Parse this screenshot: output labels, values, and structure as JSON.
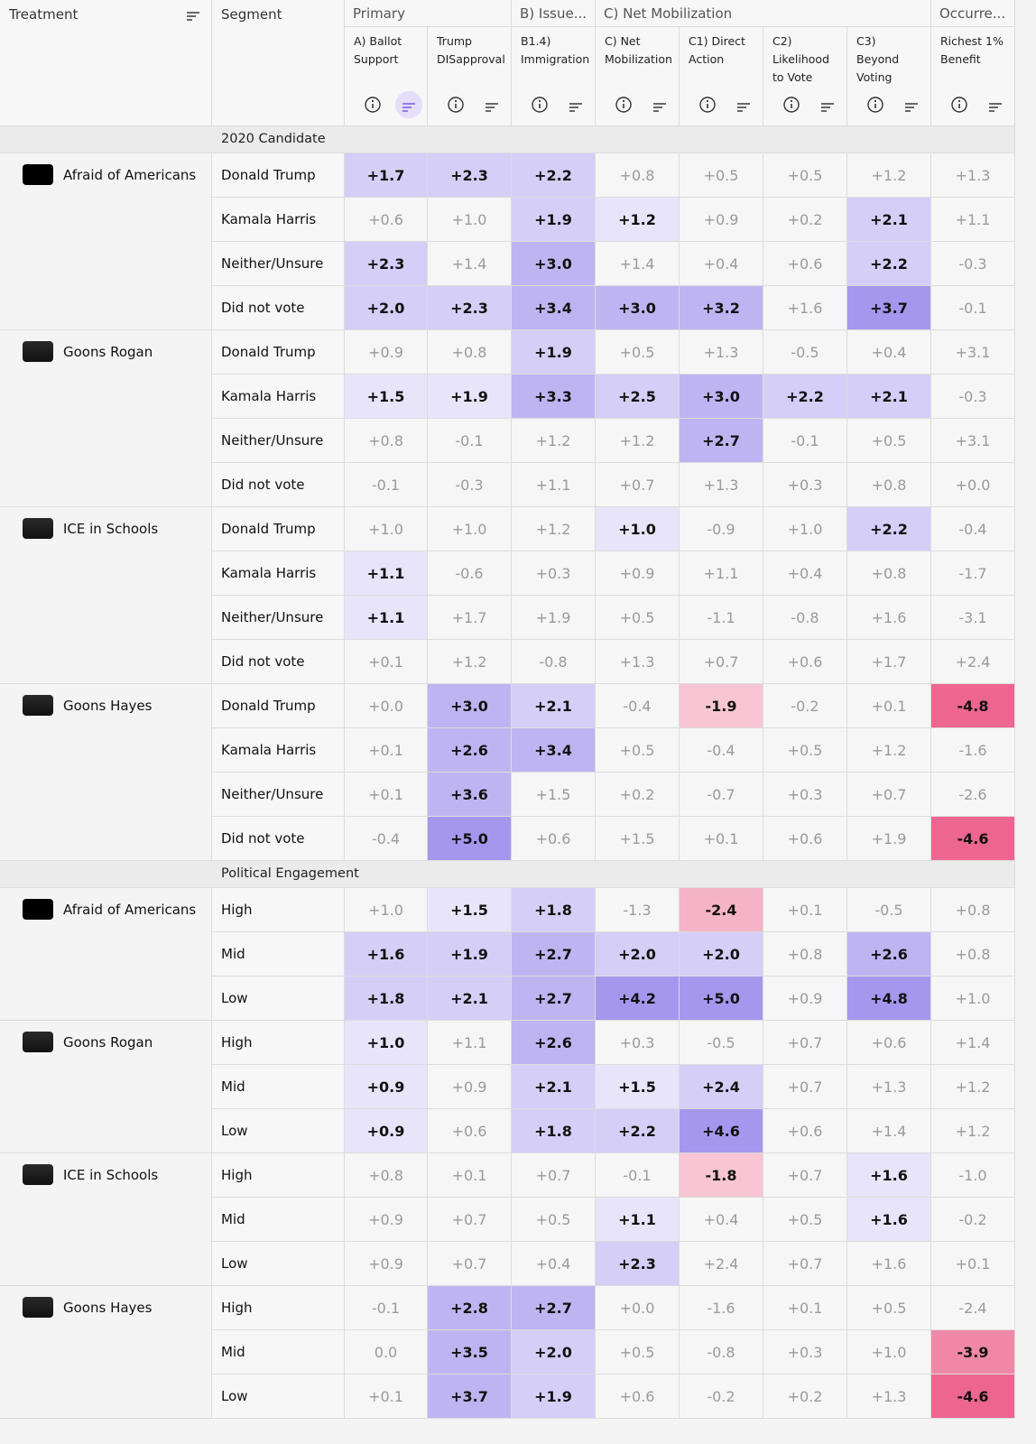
{
  "header": {
    "treatment": "Treatment",
    "segment": "Segment",
    "groups": [
      "Primary",
      "B) Issue...",
      "C) Net Mobilization",
      "Occurre..."
    ],
    "columns": [
      "A) Ballot Support",
      "Trump DISapproval",
      "B1.4) Immigration",
      "C) Net Mobilization",
      "C1) Direct Action",
      "C2) Likelihood to Vote",
      "C3) Beyond Voting",
      "Richest 1% Benefit"
    ]
  },
  "sections": [
    {
      "title": "2020 Candidate",
      "groups": [
        {
          "treatment": "Afraid of Americans",
          "rows": [
            {
              "segment": "Donald Trump",
              "cells": [
                "+1.7",
                "+2.3",
                "+2.2",
                "+0.8",
                "+0.5",
                "+0.5",
                "+1.2",
                "+1.3"
              ],
              "shades": [
                "#d5cef7",
                "#d5cef7",
                "#d5cef7",
                null,
                null,
                null,
                null,
                null
              ]
            },
            {
              "segment": "Kamala Harris",
              "cells": [
                "+0.6",
                "+1.0",
                "+1.9",
                "+1.2",
                "+0.9",
                "+0.2",
                "+2.1",
                "+1.1"
              ],
              "shades": [
                null,
                null,
                "#d5cef7",
                "#e8e5fa",
                null,
                null,
                "#d5cef7",
                null
              ]
            },
            {
              "segment": "Neither/Unsure",
              "cells": [
                "+2.3",
                "+1.4",
                "+3.0",
                "+1.4",
                "+0.4",
                "+0.6",
                "+2.2",
                "-0.3"
              ],
              "shades": [
                "#d5cef7",
                null,
                "#bfb4f2",
                null,
                null,
                null,
                "#d5cef7",
                null
              ]
            },
            {
              "segment": "Did not vote",
              "cells": [
                "+2.0",
                "+2.3",
                "+3.4",
                "+3.0",
                "+3.2",
                "+1.6",
                "+3.7",
                "-0.1"
              ],
              "shades": [
                "#d5cef7",
                "#d5cef7",
                "#bfb4f2",
                "#bfb4f2",
                "#bfb4f2",
                null,
                "#a597ee",
                null
              ]
            }
          ]
        },
        {
          "treatment": "Goons Rogan",
          "rows": [
            {
              "segment": "Donald Trump",
              "cells": [
                "+0.9",
                "+0.8",
                "+1.9",
                "+0.5",
                "+1.3",
                "-0.5",
                "+0.4",
                "+3.1"
              ],
              "shades": [
                null,
                null,
                "#d5cef7",
                null,
                null,
                null,
                null,
                null
              ]
            },
            {
              "segment": "Kamala Harris",
              "cells": [
                "+1.5",
                "+1.9",
                "+3.3",
                "+2.5",
                "+3.0",
                "+2.2",
                "+2.1",
                "-0.3"
              ],
              "shades": [
                "#e8e5fa",
                "#e8e5fa",
                "#bfb4f2",
                "#d5cef7",
                "#bfb4f2",
                "#d5cef7",
                "#d5cef7",
                null
              ]
            },
            {
              "segment": "Neither/Unsure",
              "cells": [
                "+0.8",
                "-0.1",
                "+1.2",
                "+1.2",
                "+2.7",
                "-0.1",
                "+0.5",
                "+3.1"
              ],
              "shades": [
                null,
                null,
                null,
                null,
                "#bfb4f2",
                null,
                null,
                null
              ]
            },
            {
              "segment": "Did not vote",
              "cells": [
                "-0.1",
                "-0.3",
                "+1.1",
                "+0.7",
                "+1.3",
                "+0.3",
                "+0.8",
                "+0.0"
              ],
              "shades": [
                null,
                null,
                null,
                null,
                null,
                null,
                null,
                null
              ]
            }
          ]
        },
        {
          "treatment": "ICE in Schools",
          "rows": [
            {
              "segment": "Donald Trump",
              "cells": [
                "+1.0",
                "+1.0",
                "+1.2",
                "+1.0",
                "-0.9",
                "+1.0",
                "+2.2",
                "-0.4"
              ],
              "shades": [
                null,
                null,
                null,
                "#e8e5fa",
                null,
                null,
                "#d5cef7",
                null
              ]
            },
            {
              "segment": "Kamala Harris",
              "cells": [
                "+1.1",
                "-0.6",
                "+0.3",
                "+0.9",
                "+1.1",
                "+0.4",
                "+0.8",
                "-1.7"
              ],
              "shades": [
                "#e8e5fa",
                null,
                null,
                null,
                null,
                null,
                null,
                null
              ]
            },
            {
              "segment": "Neither/Unsure",
              "cells": [
                "+1.1",
                "+1.7",
                "+1.9",
                "+0.5",
                "-1.1",
                "-0.8",
                "+1.6",
                "-3.1"
              ],
              "shades": [
                "#e8e5fa",
                null,
                null,
                null,
                null,
                null,
                null,
                null
              ]
            },
            {
              "segment": "Did not vote",
              "cells": [
                "+0.1",
                "+1.2",
                "-0.8",
                "+1.3",
                "+0.7",
                "+0.6",
                "+1.7",
                "+2.4"
              ],
              "shades": [
                null,
                null,
                null,
                null,
                null,
                null,
                null,
                null
              ]
            }
          ]
        },
        {
          "treatment": "Goons Hayes",
          "rows": [
            {
              "segment": "Donald Trump",
              "cells": [
                "+0.0",
                "+3.0",
                "+2.1",
                "-0.4",
                "-1.9",
                "-0.2",
                "+0.1",
                "-4.8"
              ],
              "shades": [
                null,
                "#bfb4f2",
                "#d5cef7",
                null,
                "#f7c5d3",
                null,
                null,
                "#ec6690"
              ]
            },
            {
              "segment": "Kamala Harris",
              "cells": [
                "+0.1",
                "+2.6",
                "+3.4",
                "+0.5",
                "-0.4",
                "+0.5",
                "+1.2",
                "-1.6"
              ],
              "shades": [
                null,
                "#bfb4f2",
                "#bfb4f2",
                null,
                null,
                null,
                null,
                null
              ]
            },
            {
              "segment": "Neither/Unsure",
              "cells": [
                "+0.1",
                "+3.6",
                "+1.5",
                "+0.2",
                "-0.7",
                "+0.3",
                "+0.7",
                "-2.6"
              ],
              "shades": [
                null,
                "#bfb4f2",
                null,
                null,
                null,
                null,
                null,
                null
              ]
            },
            {
              "segment": "Did not vote",
              "cells": [
                "-0.4",
                "+5.0",
                "+0.6",
                "+1.5",
                "+0.1",
                "+0.6",
                "+1.9",
                "-4.6"
              ],
              "shades": [
                null,
                "#a597ee",
                null,
                null,
                null,
                null,
                null,
                "#ec6690"
              ]
            }
          ]
        }
      ]
    },
    {
      "title": "Political Engagement",
      "groups": [
        {
          "treatment": "Afraid of Americans",
          "rows": [
            {
              "segment": "High",
              "cells": [
                "+1.0",
                "+1.5",
                "+1.8",
                "-1.3",
                "-2.4",
                "+0.1",
                "-0.5",
                "+0.8"
              ],
              "shades": [
                null,
                "#e8e5fa",
                "#d5cef7",
                null,
                "#f4b3c6",
                null,
                null,
                null
              ]
            },
            {
              "segment": "Mid",
              "cells": [
                "+1.6",
                "+1.9",
                "+2.7",
                "+2.0",
                "+2.0",
                "+0.8",
                "+2.6",
                "+0.8"
              ],
              "shades": [
                "#d5cef7",
                "#d5cef7",
                "#bfb4f2",
                "#d5cef7",
                "#d5cef7",
                null,
                "#bfb4f2",
                null
              ]
            },
            {
              "segment": "Low",
              "cells": [
                "+1.8",
                "+2.1",
                "+2.7",
                "+4.2",
                "+5.0",
                "+0.9",
                "+4.8",
                "+1.0"
              ],
              "shades": [
                "#d5cef7",
                "#d5cef7",
                "#bfb4f2",
                "#a597ee",
                "#a597ee",
                null,
                "#a597ee",
                null
              ]
            }
          ]
        },
        {
          "treatment": "Goons Rogan",
          "rows": [
            {
              "segment": "High",
              "cells": [
                "+1.0",
                "+1.1",
                "+2.6",
                "+0.3",
                "-0.5",
                "+0.7",
                "+0.6",
                "+1.4"
              ],
              "shades": [
                "#e8e5fa",
                null,
                "#bfb4f2",
                null,
                null,
                null,
                null,
                null
              ]
            },
            {
              "segment": "Mid",
              "cells": [
                "+0.9",
                "+0.9",
                "+2.1",
                "+1.5",
                "+2.4",
                "+0.7",
                "+1.3",
                "+1.2"
              ],
              "shades": [
                "#e8e5fa",
                null,
                "#d5cef7",
                "#e8e5fa",
                "#d5cef7",
                null,
                null,
                null
              ]
            },
            {
              "segment": "Low",
              "cells": [
                "+0.9",
                "+0.6",
                "+1.8",
                "+2.2",
                "+4.6",
                "+0.6",
                "+1.4",
                "+1.2"
              ],
              "shades": [
                "#e8e5fa",
                null,
                "#d5cef7",
                "#d5cef7",
                "#a597ee",
                null,
                null,
                null
              ]
            }
          ]
        },
        {
          "treatment": "ICE in Schools",
          "rows": [
            {
              "segment": "High",
              "cells": [
                "+0.8",
                "+0.1",
                "+0.7",
                "-0.1",
                "-1.8",
                "+0.7",
                "+1.6",
                "-1.0"
              ],
              "shades": [
                null,
                null,
                null,
                null,
                "#f7c5d3",
                null,
                "#e8e5fa",
                null
              ]
            },
            {
              "segment": "Mid",
              "cells": [
                "+0.9",
                "+0.7",
                "+0.5",
                "+1.1",
                "+0.4",
                "+0.5",
                "+1.6",
                "-0.2"
              ],
              "shades": [
                null,
                null,
                null,
                "#e8e5fa",
                null,
                null,
                "#e8e5fa",
                null
              ]
            },
            {
              "segment": "Low",
              "cells": [
                "+0.9",
                "+0.7",
                "+0.4",
                "+2.3",
                "+2.4",
                "+0.7",
                "+1.6",
                "+0.1"
              ],
              "shades": [
                null,
                null,
                null,
                "#d5cef7",
                null,
                null,
                null,
                null
              ]
            }
          ]
        },
        {
          "treatment": "Goons Hayes",
          "rows": [
            {
              "segment": "High",
              "cells": [
                "-0.1",
                "+2.8",
                "+2.7",
                "+0.0",
                "-1.6",
                "+0.1",
                "+0.5",
                "-2.4"
              ],
              "shades": [
                null,
                "#bfb4f2",
                "#bfb4f2",
                null,
                null,
                null,
                null,
                null
              ]
            },
            {
              "segment": "Mid",
              "cells": [
                "0.0",
                "+3.5",
                "+2.0",
                "+0.5",
                "-0.8",
                "+0.3",
                "+1.0",
                "-3.9"
              ],
              "shades": [
                null,
                "#bfb4f2",
                "#d5cef7",
                null,
                null,
                null,
                null,
                "#ef88a6"
              ]
            },
            {
              "segment": "Low",
              "cells": [
                "+0.1",
                "+3.7",
                "+1.9",
                "+0.6",
                "-0.2",
                "+0.2",
                "+1.3",
                "-4.6"
              ],
              "shades": [
                null,
                "#bfb4f2",
                "#d5cef7",
                null,
                null,
                null,
                null,
                "#ec6690"
              ]
            }
          ]
        }
      ]
    }
  ]
}
